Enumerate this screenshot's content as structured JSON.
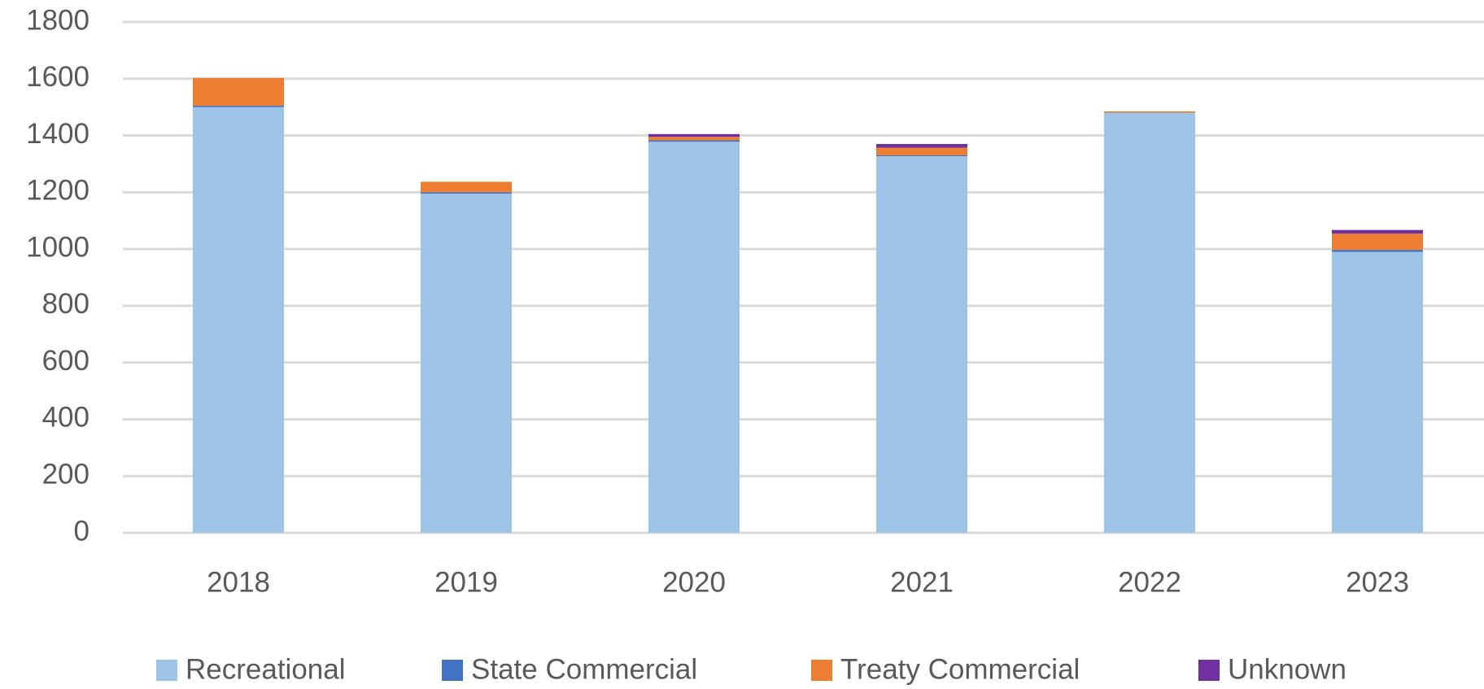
{
  "chart_data": {
    "type": "stacked_bar",
    "categories": [
      "2018",
      "2019",
      "2020",
      "2021",
      "2022",
      "2023"
    ],
    "series": [
      {
        "name": "Recreational",
        "color": "#9dc3e6",
        "values": [
          1500,
          1195,
          1378,
          1327,
          1480,
          990
        ]
      },
      {
        "name": "State Commercial",
        "color": "#4472c4",
        "values": [
          5,
          5,
          5,
          3,
          0,
          7
        ]
      },
      {
        "name": "Treaty Commercial",
        "color": "#ed7d31",
        "values": [
          98,
          37,
          12,
          27,
          5,
          57
        ]
      },
      {
        "name": "Unknown",
        "color": "#7030a0",
        "values": [
          0,
          0,
          10,
          13,
          0,
          13
        ]
      }
    ],
    "ylim": [
      0,
      1800
    ],
    "yticks": [
      0,
      200,
      400,
      600,
      800,
      1000,
      1200,
      1400,
      1600,
      1800
    ],
    "grid": true,
    "legend": "bottom"
  }
}
